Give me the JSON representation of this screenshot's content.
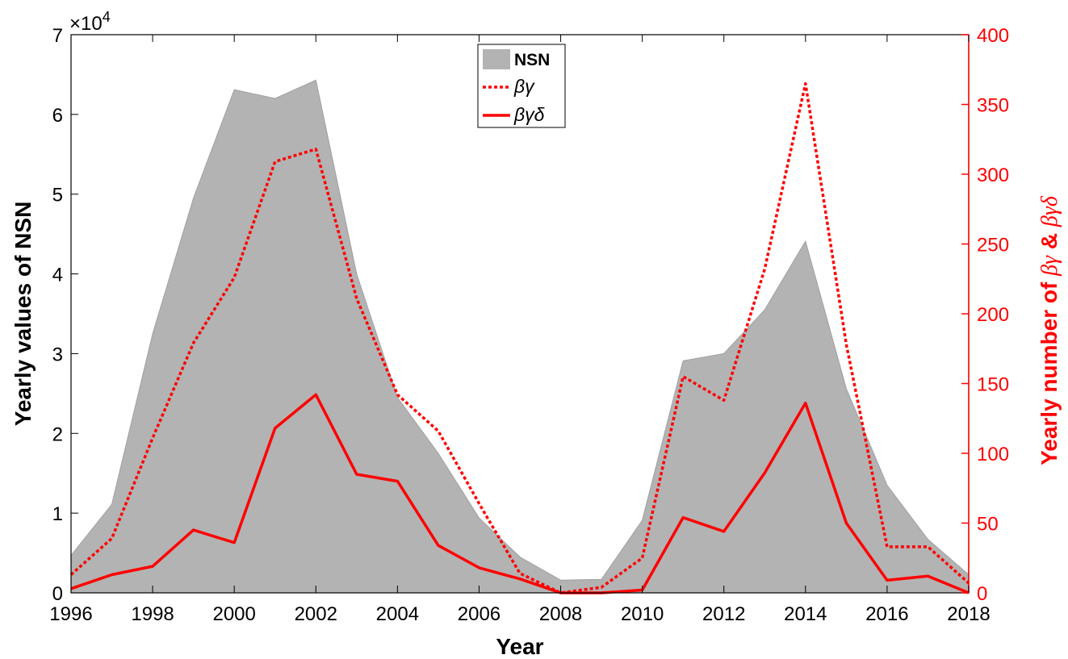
{
  "chart_data": {
    "type": "area",
    "xlabel": "Year",
    "ylabel_left": "Yearly values of NSN",
    "ylabel_right_prefix": "Yearly number of",
    "ylabel_right_series_a": "βγ",
    "ylabel_right_joiner": "&",
    "ylabel_right_series_b": "βγδ",
    "left_axis_multiplier": "×10",
    "left_axis_exponent": "4",
    "xlim": [
      1996,
      2018
    ],
    "ylim_left": [
      0,
      70000
    ],
    "ylim_right": [
      0,
      400
    ],
    "x_ticks": [
      "1996",
      "1998",
      "2000",
      "2002",
      "2004",
      "2006",
      "2008",
      "2010",
      "2012",
      "2014",
      "2016",
      "2018"
    ],
    "y_left_ticks": [
      "0",
      "1",
      "2",
      "3",
      "4",
      "5",
      "6",
      "7"
    ],
    "y_right_ticks": [
      "0",
      "50",
      "100",
      "150",
      "200",
      "250",
      "300",
      "350",
      "400"
    ],
    "legend_position": "top-center",
    "colors": {
      "nsn_fill": "#b3b3b3",
      "series": "#ff0000",
      "axis_right": "#ff0000",
      "axis_left": "#000000"
    },
    "x": [
      1996,
      1997,
      1998,
      1999,
      2000,
      2001,
      2002,
      2003,
      2004,
      2005,
      2006,
      2007,
      2008,
      2009,
      2010,
      2011,
      2012,
      2013,
      2014,
      2015,
      2016,
      2017,
      2018
    ],
    "series": [
      {
        "name": "NSN",
        "axis": "left",
        "style": "area",
        "values": [
          4700,
          11100,
          32500,
          49500,
          63100,
          62000,
          64300,
          40000,
          24500,
          17500,
          9400,
          4500,
          1600,
          1700,
          9100,
          29100,
          30000,
          35500,
          44100,
          25600,
          13500,
          6700,
          2300
        ]
      },
      {
        "name": "βγ",
        "axis": "right",
        "style": "dotted",
        "values": [
          13,
          39,
          111,
          179,
          226,
          309,
          318,
          211,
          142,
          116,
          64,
          14,
          0,
          4,
          25,
          155,
          138,
          232,
          365,
          178,
          33,
          33,
          7
        ]
      },
      {
        "name": "βγδ",
        "axis": "right",
        "style": "solid",
        "values": [
          3,
          13,
          19,
          45,
          36,
          118,
          142,
          85,
          80,
          34,
          18,
          10,
          0,
          0,
          2,
          54,
          44,
          86,
          136,
          50,
          9,
          12,
          0
        ]
      }
    ]
  }
}
